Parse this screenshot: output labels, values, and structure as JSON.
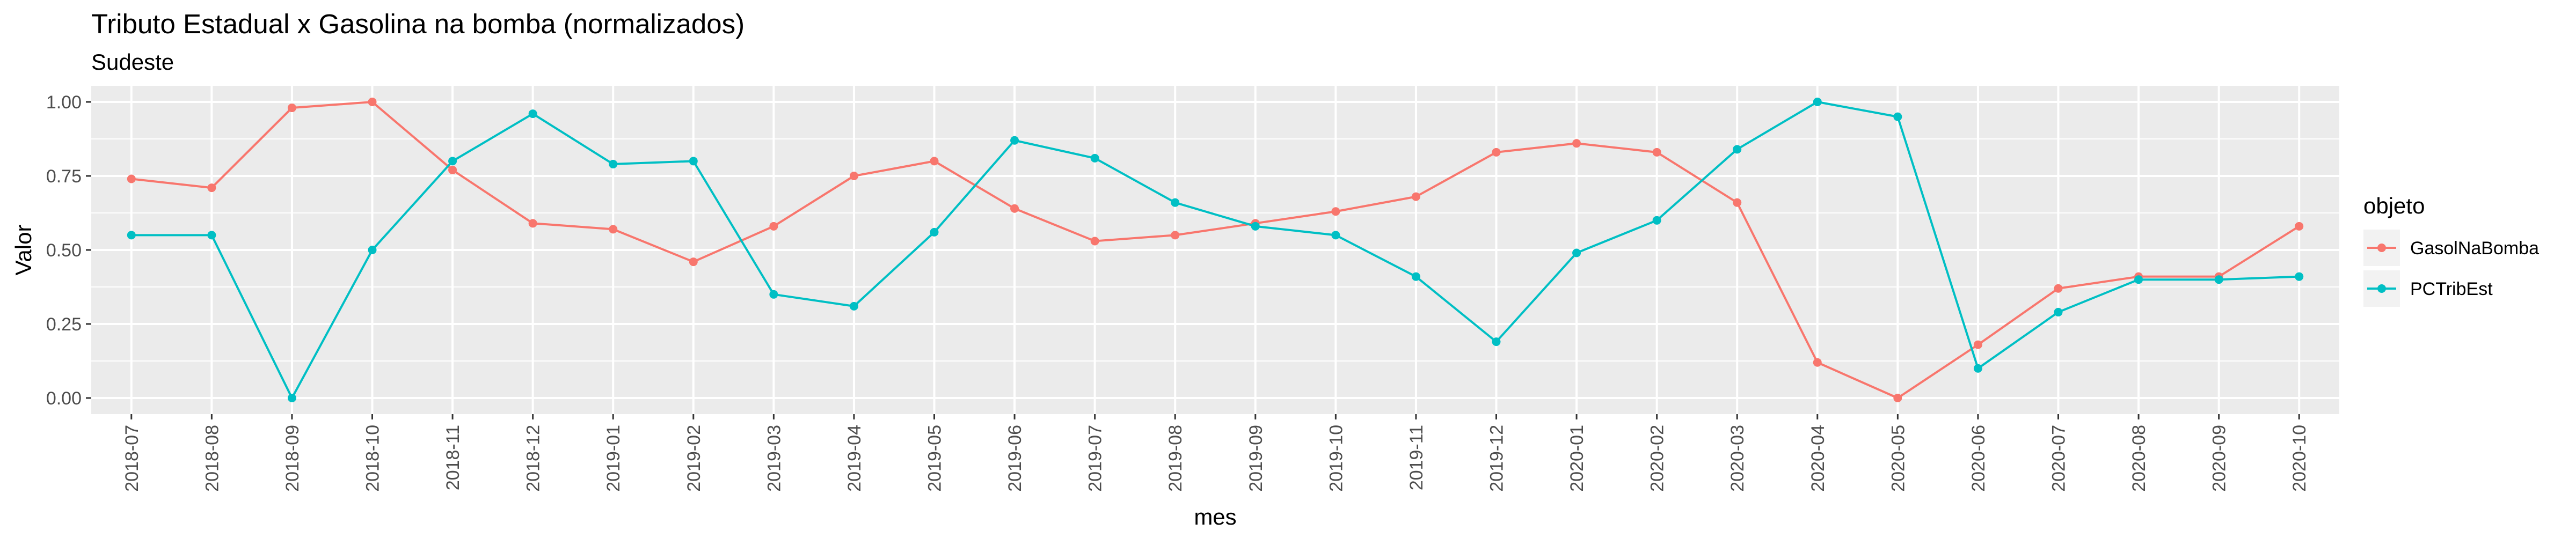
{
  "chart_data": {
    "type": "line",
    "title": "Tributo Estadual x Gasolina na bomba (normalizados)",
    "subtitle": "Sudeste",
    "xlabel": "mes",
    "ylabel": "Valor",
    "ylim": [
      0,
      1
    ],
    "yticks": [
      "0.00",
      "0.25",
      "0.50",
      "0.75",
      "1.00"
    ],
    "grid": true,
    "legend_title": "objeto",
    "legend_position": "right",
    "categories": [
      "2018-07",
      "2018-08",
      "2018-09",
      "2018-10",
      "2018-11",
      "2018-12",
      "2019-01",
      "2019-02",
      "2019-03",
      "2019-04",
      "2019-05",
      "2019-06",
      "2019-07",
      "2019-08",
      "2019-09",
      "2019-10",
      "2019-11",
      "2019-12",
      "2020-01",
      "2020-02",
      "2020-03",
      "2020-04",
      "2020-05",
      "2020-06",
      "2020-07",
      "2020-08",
      "2020-09",
      "2020-10"
    ],
    "series": [
      {
        "name": "GasolNaBomba",
        "color": "#F8766D",
        "values": [
          0.74,
          0.71,
          0.98,
          1.0,
          0.77,
          0.59,
          0.57,
          0.46,
          0.58,
          0.75,
          0.8,
          0.64,
          0.53,
          0.55,
          0.59,
          0.63,
          0.68,
          0.83,
          0.86,
          0.83,
          0.66,
          0.12,
          0.0,
          0.18,
          0.37,
          0.41,
          0.41,
          0.58
        ]
      },
      {
        "name": "PCTribEst",
        "color": "#00BFC4",
        "values": [
          0.55,
          0.55,
          0.0,
          0.5,
          0.8,
          0.96,
          0.79,
          0.8,
          0.35,
          0.31,
          0.56,
          0.87,
          0.81,
          0.66,
          0.58,
          0.55,
          0.41,
          0.19,
          0.49,
          0.6,
          0.84,
          1.0,
          0.95,
          0.1,
          0.29,
          0.4,
          0.4,
          0.41
        ]
      }
    ]
  }
}
